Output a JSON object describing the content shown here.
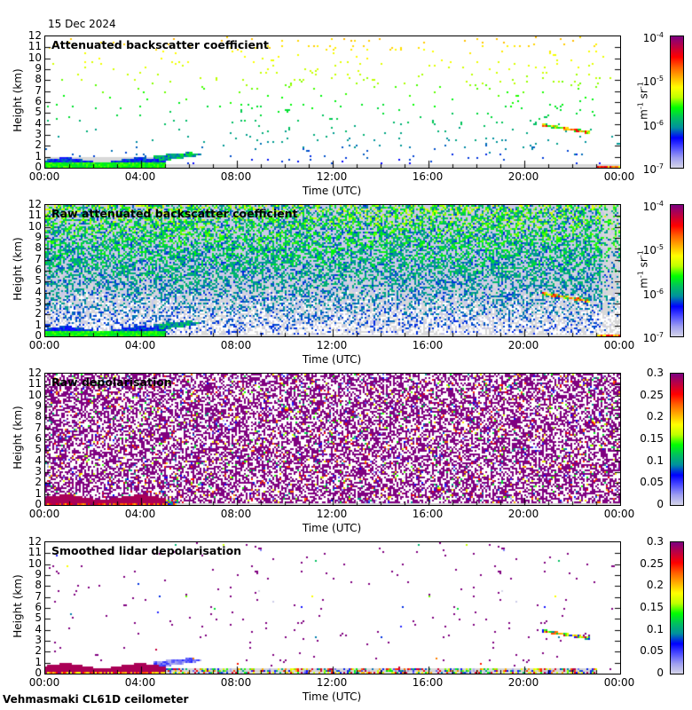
{
  "date": "15 Dec 2024",
  "footer": "Vehmasmaki CL61D ceilometer",
  "chart_data": [
    {
      "type": "heatmap",
      "title": "Attenuated backscatter coefficient",
      "xlabel": "Time (UTC)",
      "ylabel": "Height (km)",
      "xlim": [
        0,
        24
      ],
      "ylim": [
        0,
        12
      ],
      "colorbar": {
        "scale": "log",
        "range": [
          1e-07,
          0.0001
        ],
        "unit": "m-1 sr-1",
        "ticks": [
          "10-7",
          "10-6",
          "10-5",
          "10-4"
        ]
      },
      "kind": "att"
    },
    {
      "type": "heatmap",
      "title": "Raw attenuated backscatter coefficient",
      "xlabel": "Time (UTC)",
      "ylabel": "Height (km)",
      "xlim": [
        0,
        24
      ],
      "ylim": [
        0,
        12
      ],
      "colorbar": {
        "scale": "log",
        "range": [
          1e-07,
          0.0001
        ],
        "unit": "m-1 sr-1",
        "ticks": [
          "10-7",
          "10-6",
          "10-5",
          "10-4"
        ]
      },
      "kind": "raw"
    },
    {
      "type": "heatmap",
      "title": "Raw depolarisation",
      "xlabel": "Time (UTC)",
      "ylabel": "Height (km)",
      "xlim": [
        0,
        24
      ],
      "ylim": [
        0,
        12
      ],
      "colorbar": {
        "scale": "linear",
        "range": [
          0,
          0.3
        ],
        "unit": "",
        "ticks": [
          "0",
          "0.05",
          "0.1",
          "0.15",
          "0.2",
          "0.25",
          "0.3"
        ]
      },
      "kind": "rawdep"
    },
    {
      "type": "heatmap",
      "title": "Smoothed lidar depolarisation",
      "xlabel": "Time (UTC)",
      "ylabel": "Height (km)",
      "xlim": [
        0,
        24
      ],
      "ylim": [
        0,
        12
      ],
      "colorbar": {
        "scale": "linear",
        "range": [
          0,
          0.3
        ],
        "unit": "",
        "ticks": [
          "0",
          "0.05",
          "0.1",
          "0.15",
          "0.2",
          "0.25",
          "0.3"
        ]
      },
      "kind": "dep"
    }
  ],
  "xticks": [
    "00:00",
    "04:00",
    "08:00",
    "12:00",
    "16:00",
    "20:00",
    "00:00"
  ],
  "yticks": [
    "0",
    "1",
    "2",
    "3",
    "4",
    "5",
    "6",
    "7",
    "8",
    "9",
    "10",
    "11",
    "12"
  ],
  "features": {
    "boundary_layer": {
      "time_h": [
        0,
        5
      ],
      "top_km": 0.8
    },
    "elevated_layer": {
      "time_h": [
        5.2,
        7
      ],
      "height_km": [
        1.0,
        1.5
      ]
    },
    "cloud": {
      "time_h": [
        20.7,
        22.7
      ],
      "height_km_start": 4.0,
      "height_km_end": 3.3
    },
    "surface_layer": {
      "time_h": [
        23,
        24
      ],
      "top_km": 0.2
    }
  },
  "colormap": [
    "#d8d8e8",
    "#a0a0f0",
    "#5050ff",
    "#0000ff",
    "#0090a0",
    "#00c060",
    "#00ff00",
    "#c0ff00",
    "#ffff00",
    "#ffb000",
    "#ff6000",
    "#ff0000",
    "#c00040",
    "#800080"
  ]
}
